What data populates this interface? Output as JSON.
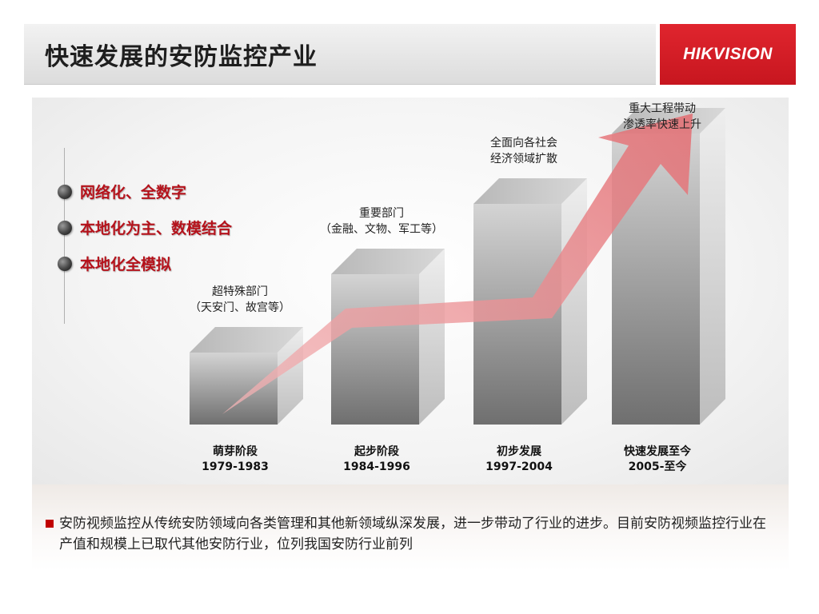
{
  "header": {
    "title": "快速发展的安防监控产业",
    "logo": "HIKVISION"
  },
  "bullets": [
    "网络化、全数字",
    "本地化为主、数模结合",
    "本地化全模拟"
  ],
  "chart_data": {
    "type": "bar",
    "categories": [
      {
        "name": "萌芽阶段",
        "period": "1979-1983"
      },
      {
        "name": "起步阶段",
        "period": "1984-1996"
      },
      {
        "name": "初步发展",
        "period": "1997-2004"
      },
      {
        "name": "快速发展至今",
        "period": "2005-至今"
      }
    ],
    "values": [
      1,
      2,
      3,
      4
    ],
    "annotations": [
      [
        "超特殊部门",
        "（天安门、故宫等）"
      ],
      [
        "重要部门",
        "（金融、文物、军工等）"
      ],
      [
        "全面向各社会",
        "经济领域扩散"
      ],
      [
        "重大工程带动",
        "渗透率快速上升"
      ]
    ],
    "trend_arrow": "rising"
  },
  "note": {
    "text": "安防视频监控从传统安防领域向各类管理和其他新领域纵深发展，进一步带动了行业的进步。目前安防视频监控行业在产值和规模上已取代其他安防行业，位列我国安防行业前列"
  },
  "colors": {
    "brand_red": "#d71f28",
    "bullet_text": "#b5121b",
    "arrow": "#e8868a"
  }
}
